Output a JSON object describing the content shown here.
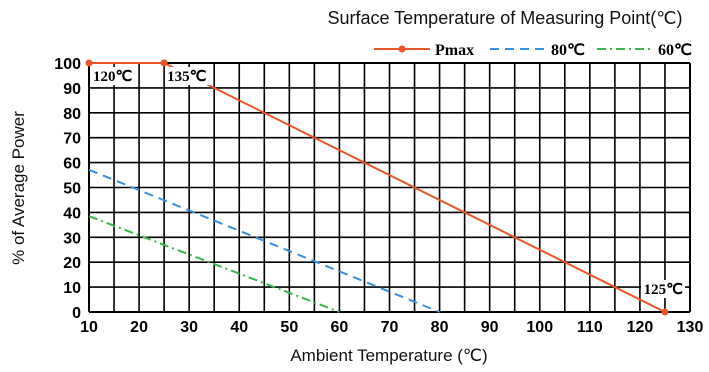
{
  "chart_data": {
    "type": "line",
    "title": "Surface Temperature of Measuring Point(℃)",
    "xlabel": "Ambient Temperature (℃)",
    "ylabel": "% of Average Power",
    "xlim": [
      10,
      130
    ],
    "ylim": [
      0,
      100
    ],
    "x_ticks": [
      "10",
      "20",
      "30",
      "40",
      "50",
      "60",
      "70",
      "80",
      "90",
      "100",
      "110",
      "120",
      "130"
    ],
    "y_ticks": [
      "0",
      "10",
      "20",
      "30",
      "40",
      "50",
      "60",
      "70",
      "80",
      "90",
      "100"
    ],
    "grid": true,
    "legend_position": "top-right",
    "series": [
      {
        "name": "Pmax",
        "color": "#e8562a",
        "style": "solid-marker",
        "points": [
          [
            10,
            100
          ],
          [
            25,
            100
          ],
          [
            125,
            0
          ]
        ]
      },
      {
        "name": "80℃",
        "color": "#3a8fe0",
        "style": "dashed",
        "points": [
          [
            10,
            57.1
          ],
          [
            80,
            0
          ]
        ]
      },
      {
        "name": "60℃",
        "color": "#3ab54a",
        "style": "dash-dot",
        "points": [
          [
            10,
            38.5
          ],
          [
            60,
            0
          ]
        ]
      }
    ],
    "annotations": [
      {
        "text": "120℃",
        "x": 10,
        "y": 100
      },
      {
        "text": "135℃",
        "x": 25,
        "y": 100
      },
      {
        "text": "125℃",
        "x": 125,
        "y": 0
      }
    ]
  }
}
